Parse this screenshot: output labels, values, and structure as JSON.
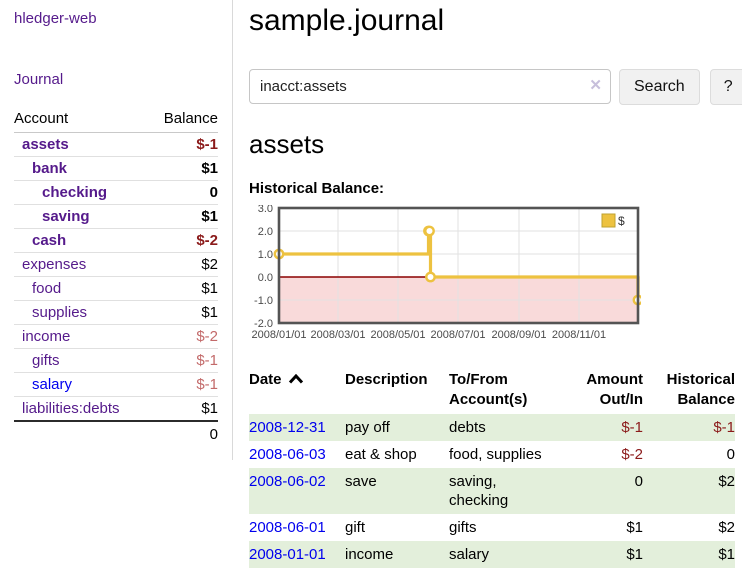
{
  "app": {
    "title": "hledger-web"
  },
  "nav": {
    "journal": "Journal"
  },
  "sidebar": {
    "headers": {
      "account": "Account",
      "balance": "Balance"
    },
    "accounts": [
      {
        "name": "assets",
        "depth": 1,
        "matched": true,
        "balance": "$-1",
        "balance_style": "negative"
      },
      {
        "name": "bank",
        "depth": 2,
        "matched": true,
        "balance": "$1",
        "balance_style": "normal"
      },
      {
        "name": "checking",
        "depth": 3,
        "matched": true,
        "balance": "0",
        "balance_style": "normal"
      },
      {
        "name": "saving",
        "depth": 3,
        "matched": true,
        "balance": "$1",
        "balance_style": "normal"
      },
      {
        "name": "cash",
        "depth": 2,
        "matched": true,
        "balance": "$-2",
        "balance_style": "negative"
      },
      {
        "name": "expenses",
        "depth": 1,
        "matched": false,
        "balance": "$2",
        "balance_style": "normal"
      },
      {
        "name": "food",
        "depth": 2,
        "matched": false,
        "balance": "$1",
        "balance_style": "normal"
      },
      {
        "name": "supplies",
        "depth": 2,
        "matched": false,
        "balance": "$1",
        "balance_style": "normal"
      },
      {
        "name": "income",
        "depth": 1,
        "matched": false,
        "balance": "$-2",
        "balance_style": "muted-negative"
      },
      {
        "name": "gifts",
        "depth": 2,
        "matched": false,
        "balance": "$-1",
        "balance_style": "muted-negative"
      },
      {
        "name": "salary",
        "depth": 2,
        "matched": false,
        "balance": "$-1",
        "balance_style": "muted-negative",
        "link_blue": true
      },
      {
        "name": "liabilities:debts",
        "depth": 1,
        "matched": false,
        "balance": "$1",
        "balance_style": "normal"
      }
    ],
    "total": "0"
  },
  "header": {
    "title": "sample.journal"
  },
  "search": {
    "value": "inacct:assets",
    "clear_icon": "✕",
    "button_label": "Search",
    "help_label": "?"
  },
  "account_page": {
    "title": "assets",
    "chart_label": "Historical Balance:"
  },
  "chart_data": {
    "type": "line",
    "title": "Historical Balance",
    "step": true,
    "series": [
      {
        "name": "$",
        "color": "#edc240",
        "points": [
          [
            "2008-01-01",
            1
          ],
          [
            "2008-06-01",
            2
          ],
          [
            "2008-06-02",
            2
          ],
          [
            "2008-06-03",
            0
          ],
          [
            "2008-12-31",
            -1
          ]
        ]
      }
    ],
    "x_start": "2008-01-01",
    "x_end": "2008-12-31",
    "x_ticks": [
      [
        "2008-01-01",
        "2008/01/01"
      ],
      [
        "2008-03-01",
        "2008/03/01"
      ],
      [
        "2008-05-01",
        "2008/05/01"
      ],
      [
        "2008-07-01",
        "2008/07/01"
      ],
      [
        "2008-09-01",
        "2008/09/01"
      ],
      [
        "2008-11-01",
        "2008/11/01"
      ]
    ],
    "y_ticks": [
      "3.0",
      "2.0",
      "1.0",
      "0.0",
      "-1.0",
      "-2.0"
    ],
    "ylim": [
      -2,
      3
    ],
    "grid": true,
    "legend_position": "top-right",
    "negative_region_color": "#f9dada",
    "zero_line_color": "#8b0000",
    "border_color": "#545454",
    "grid_color": "#e2e2e2",
    "tick_label_color": "#4a4a4a"
  },
  "transactions": {
    "headers": {
      "date": "Date",
      "description": "Description",
      "accounts": [
        "To/From",
        "Account(s)"
      ],
      "amount": [
        "Amount",
        "Out/In"
      ],
      "balance": [
        "Historical",
        "Balance"
      ]
    },
    "rows": [
      {
        "date": "2008-12-31",
        "description": "pay off",
        "accounts": [
          "debts"
        ],
        "amount": "$-1",
        "amount_negative": true,
        "balance": "$-1",
        "balance_negative": true,
        "shaded": true
      },
      {
        "date": "2008-06-03",
        "description": "eat & shop",
        "accounts": [
          "food, supplies"
        ],
        "amount": "$-2",
        "amount_negative": true,
        "balance": "0",
        "balance_negative": false,
        "shaded": false
      },
      {
        "date": "2008-06-02",
        "description": "save",
        "accounts": [
          "saving,",
          "checking"
        ],
        "amount": "0",
        "amount_negative": false,
        "balance": "$2",
        "balance_negative": false,
        "shaded": true
      },
      {
        "date": "2008-06-01",
        "description": "gift",
        "accounts": [
          "gifts"
        ],
        "amount": "$1",
        "amount_negative": false,
        "balance": "$2",
        "balance_negative": false,
        "shaded": false
      },
      {
        "date": "2008-01-01",
        "description": "income",
        "accounts": [
          "salary"
        ],
        "amount": "$1",
        "amount_negative": false,
        "balance": "$1",
        "balance_negative": false,
        "shaded": true
      }
    ]
  },
  "colors": {
    "link_purple": "#551a8b",
    "link_blue": "#0000ee",
    "negative": "#8b1a1a",
    "muted_negative": "#c36a6a",
    "row_green": "#e3efdb",
    "series_yellow": "#edc240"
  }
}
